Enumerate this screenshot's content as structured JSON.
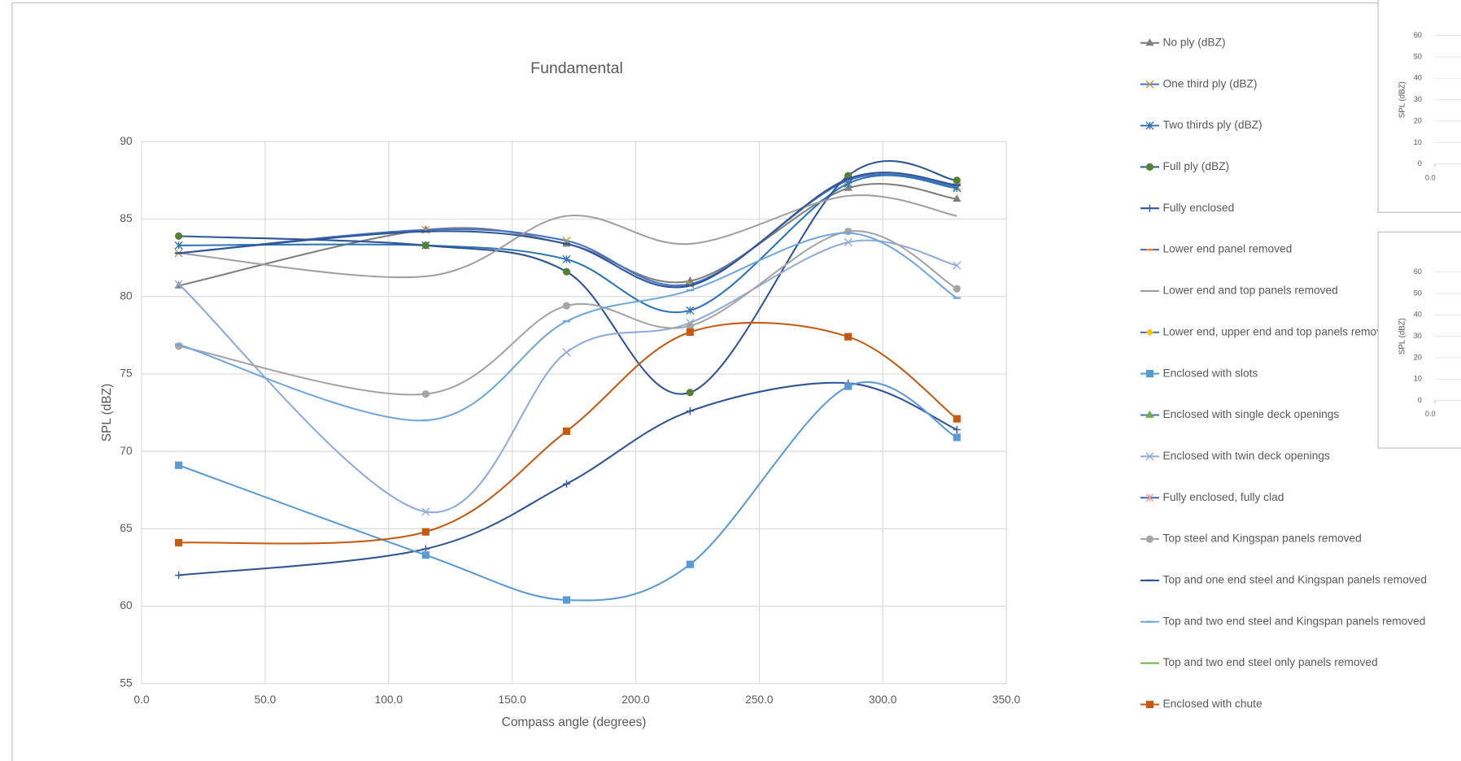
{
  "chart_data": [
    {
      "type": "line",
      "title": "Fundamental",
      "xlabel": "Compass angle (degrees)",
      "ylabel": "SPL (dBZ)",
      "x": [
        15,
        115,
        172,
        222,
        286,
        330
      ],
      "xlim": [
        0,
        350
      ],
      "ylim": [
        55,
        90
      ],
      "xticks": [
        {
          "value": 0,
          "label": "0.0"
        },
        {
          "value": 50,
          "label": "50.0"
        },
        {
          "value": 100,
          "label": "100.0"
        },
        {
          "value": 150,
          "label": "150.0"
        },
        {
          "value": 200,
          "label": "200.0"
        },
        {
          "value": 250,
          "label": "250.0"
        },
        {
          "value": 300,
          "label": "300.0"
        },
        {
          "value": 350,
          "label": "350.0"
        }
      ],
      "yticks": [
        55,
        60,
        65,
        70,
        75,
        80,
        85,
        90
      ],
      "grid": true,
      "smooth": true,
      "legend": "right",
      "series": [
        {
          "name": "No ply (dBZ)",
          "color": "#7f7f7f",
          "marker": "triangle",
          "marker_color": "#7f7f7f",
          "values": [
            80.7,
            84.3,
            83.4,
            81.0,
            87.0,
            86.3
          ]
        },
        {
          "name": "One third ply (dBZ)",
          "color": "#4472c4",
          "marker": "x",
          "marker_color": "#c59a3a",
          "values": [
            82.8,
            84.3,
            83.6,
            80.8,
            87.5,
            87.1
          ]
        },
        {
          "name": "Two thirds ply (dBZ)",
          "color": "#2e75b6",
          "marker": "asterisk",
          "marker_color": "#2e75b6",
          "values": [
            83.3,
            83.3,
            82.4,
            79.1,
            87.3,
            87.0
          ]
        },
        {
          "name": "Full ply (dBZ)",
          "color": "#2f5597",
          "marker": "circle",
          "marker_color": "#548235",
          "values": [
            83.9,
            83.3,
            81.6,
            73.8,
            87.8,
            87.5
          ]
        },
        {
          "name": "Fully enclosed",
          "color": "#2f5597",
          "marker": "plus",
          "marker_color": "#2f5597",
          "values": [
            62.0,
            63.7,
            67.9,
            72.6,
            74.4,
            71.4
          ]
        },
        {
          "name": "Lower end panel removed",
          "color": "#4472c4",
          "marker": "dash",
          "marker_color": "#ed7d31",
          "values": [
            null,
            null,
            null,
            null,
            null,
            null
          ]
        },
        {
          "name": "Lower end and top panels removed",
          "color": "#a0a0a0",
          "marker": "none",
          "marker_color": "#a0a0a0",
          "values": [
            82.8,
            81.3,
            85.2,
            83.4,
            86.5,
            85.2
          ]
        },
        {
          "name": "Lower end, upper end  and top panels removed",
          "color": "#4472c4",
          "marker": "diamond",
          "marker_color": "#ffc000",
          "values": [
            null,
            null,
            null,
            null,
            null,
            null
          ]
        },
        {
          "name": "Enclosed with slots",
          "color": "#5b9bd5",
          "marker": "square",
          "marker_color": "#5b9bd5",
          "values": [
            69.1,
            63.3,
            60.4,
            62.7,
            74.2,
            70.9
          ]
        },
        {
          "name": "Enclosed with single deck openings",
          "color": "#4472c4",
          "marker": "triangle",
          "marker_color": "#70ad47",
          "values": [
            null,
            null,
            null,
            null,
            null,
            null
          ]
        },
        {
          "name": "Enclosed with twin deck openings",
          "color": "#8faadc",
          "marker": "x",
          "marker_color": "#8faadc",
          "values": [
            80.8,
            66.1,
            76.4,
            78.3,
            83.5,
            82.0
          ]
        },
        {
          "name": "Fully enclosed, fully clad",
          "color": "#4472c4",
          "marker": "asterisk",
          "marker_color": "#ff9c8a",
          "values": [
            null,
            null,
            null,
            null,
            null,
            null
          ]
        },
        {
          "name": "Top steel and Kingspan panels removed",
          "color": "#a5a5a5",
          "marker": "circle",
          "marker_color": "#a5a5a5",
          "values": [
            76.8,
            73.7,
            79.4,
            78.1,
            84.2,
            80.5
          ]
        },
        {
          "name": "Top and one end steel and Kingspan panels removed",
          "color": "#2f5597",
          "marker": "dash",
          "marker_color": "#2f5597",
          "values": [
            82.8,
            84.2,
            83.4,
            80.7,
            87.6,
            87.2
          ]
        },
        {
          "name": "Top and two end steel and Kingspan panels removed",
          "color": "#6fa8dc",
          "marker": "dash",
          "marker_color": "#6fa8dc",
          "values": [
            76.9,
            72.0,
            78.4,
            80.4,
            84.1,
            79.9
          ]
        },
        {
          "name": "Top and two end steel only panels removed",
          "color": "#70ad47",
          "marker": "none",
          "marker_color": "#70ad47",
          "values": [
            null,
            null,
            null,
            null,
            null,
            null
          ]
        },
        {
          "name": "Enclosed with chute",
          "color": "#c55a11",
          "marker": "square",
          "marker_color": "#c55a11",
          "values": [
            64.1,
            64.8,
            71.3,
            77.7,
            77.4,
            72.1
          ]
        }
      ]
    },
    {
      "type": "line",
      "ylabel": "SPL (dBZ)",
      "ylim": [
        0,
        60
      ],
      "yticks": [
        0,
        10,
        20,
        30,
        40,
        50,
        60
      ],
      "xticks": [
        {
          "value": 0,
          "label": "0.0"
        }
      ]
    },
    {
      "type": "line",
      "ylabel": "SPL (dBZ)",
      "ylim": [
        0,
        60
      ],
      "yticks": [
        0,
        10,
        20,
        30,
        40,
        50,
        60
      ],
      "xticks": [
        {
          "value": 0,
          "label": "0.0"
        }
      ]
    }
  ]
}
